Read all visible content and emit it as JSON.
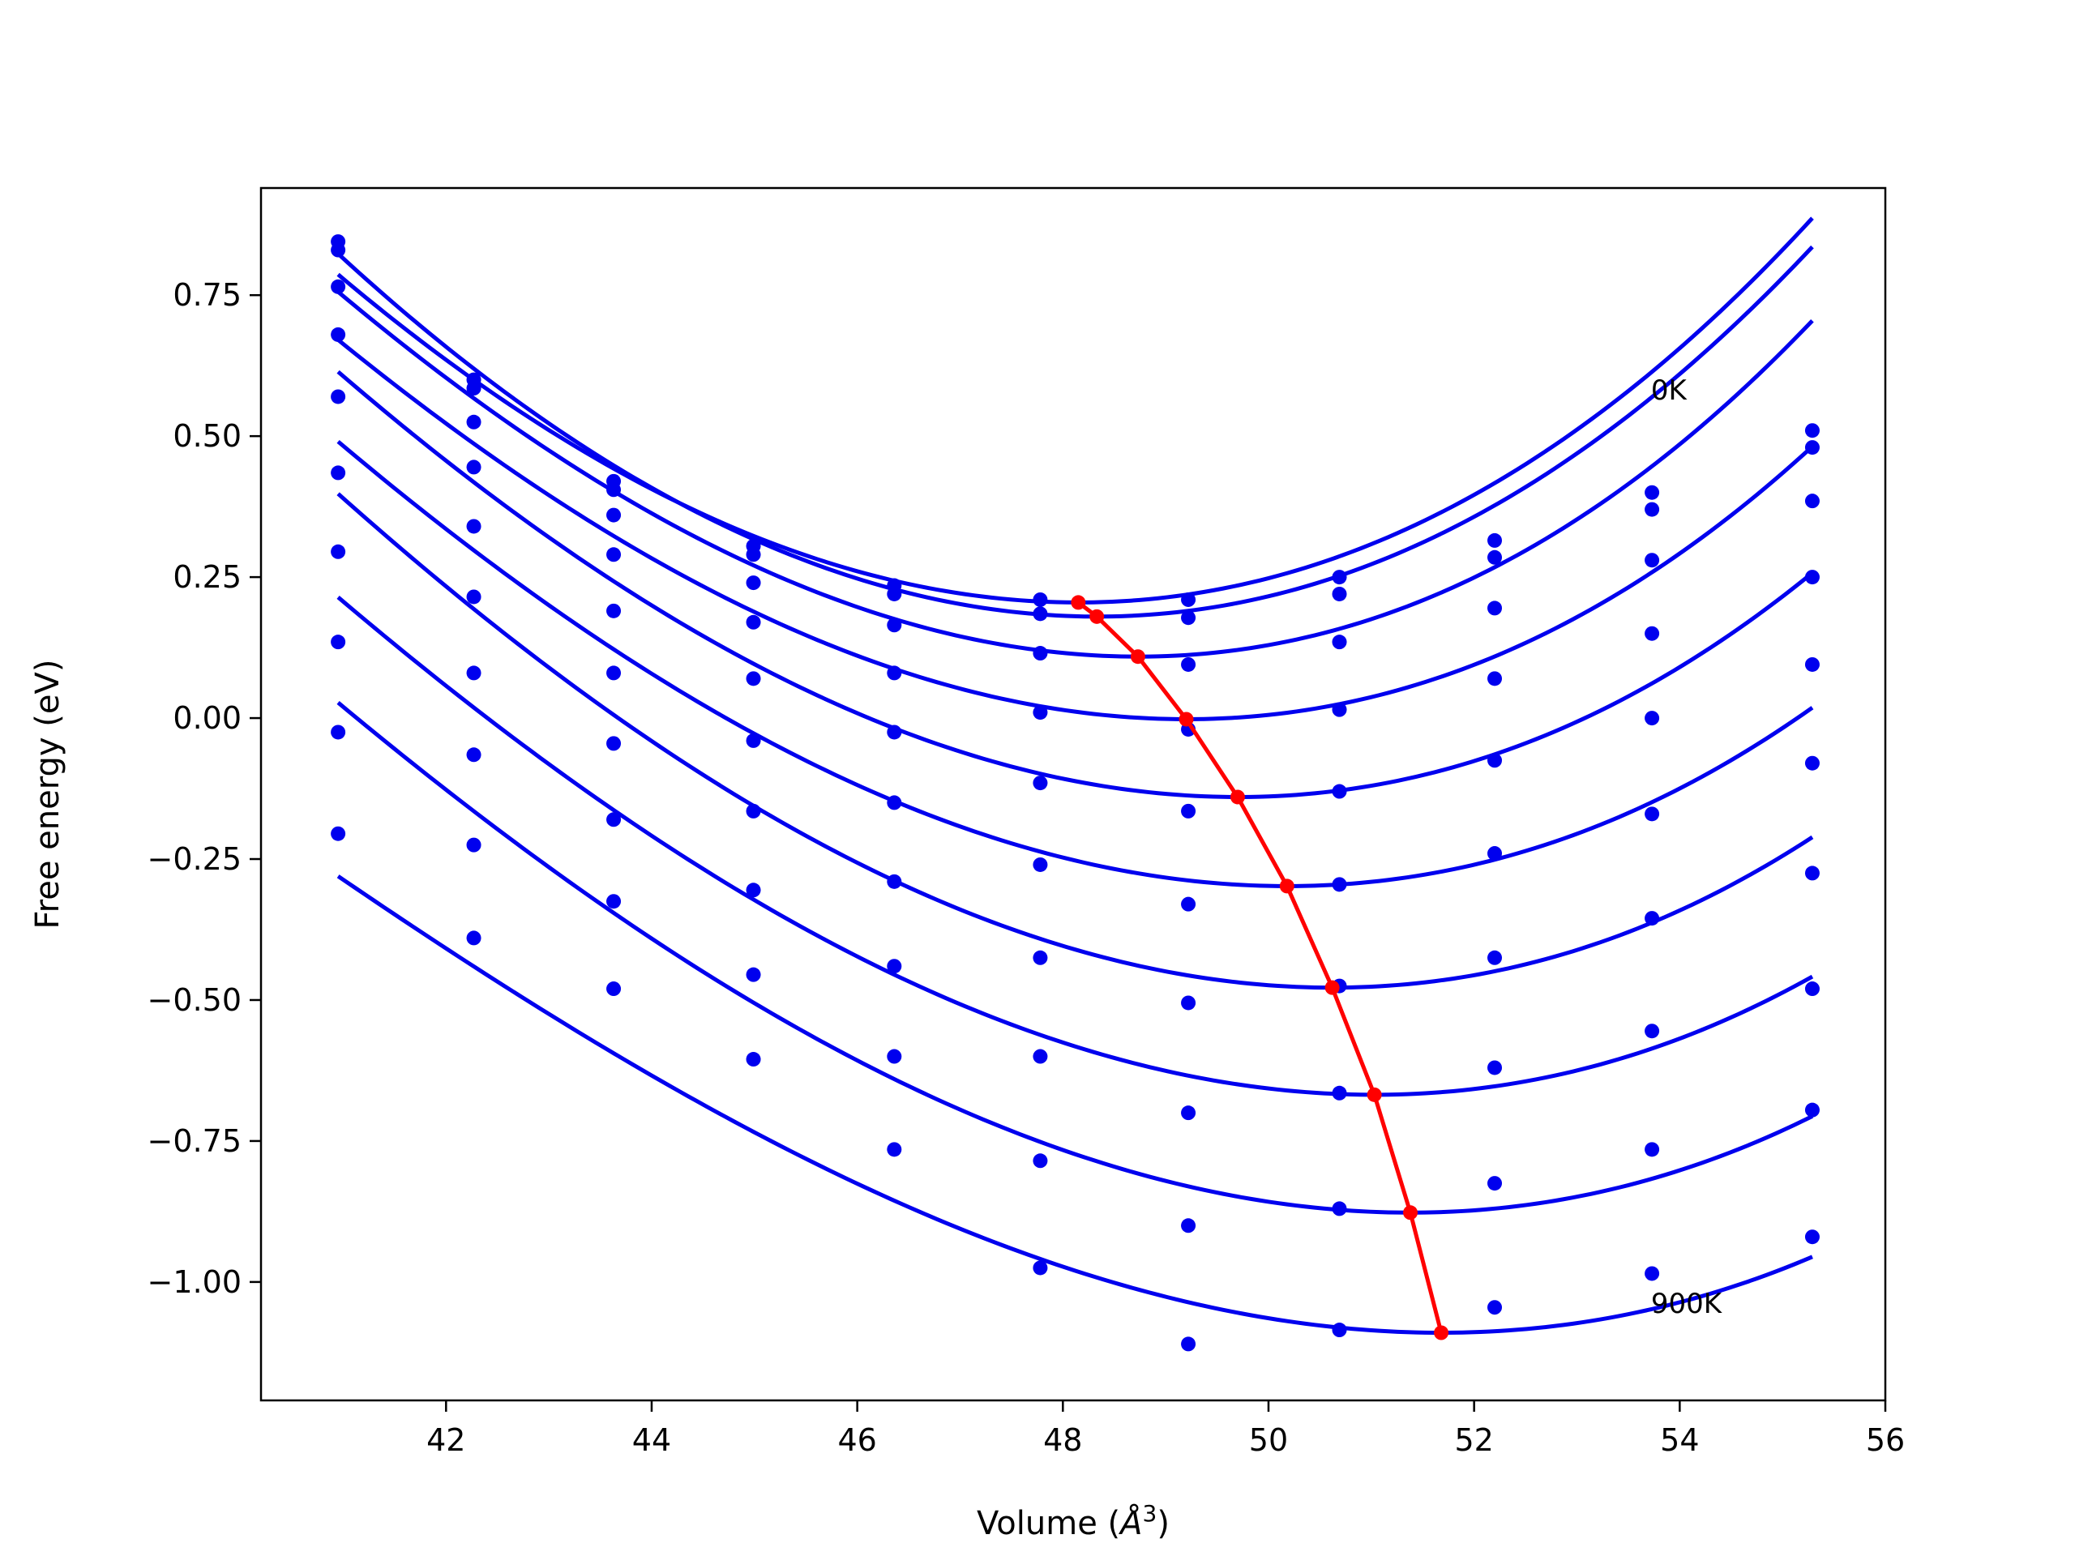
{
  "chart_data": {
    "type": "scatter",
    "title": "",
    "xlabel": "Volume ($\\AA^3$)",
    "xlabel_parts": {
      "prefix": "Volume (",
      "symbol": "Å",
      "exp": "3",
      "suffix": ")"
    },
    "ylabel": "Free energy (eV)",
    "xlim": [
      40.2,
      56.0
    ],
    "ylim": [
      -1.21,
      0.94
    ],
    "xticks": [
      42,
      44,
      46,
      48,
      50,
      52,
      54,
      56
    ],
    "xtick_labels": [
      "42",
      "44",
      "46",
      "48",
      "50",
      "52",
      "54",
      "56"
    ],
    "yticks": [
      -1.0,
      -0.75,
      -0.5,
      -0.25,
      0.0,
      0.25,
      0.5,
      0.75
    ],
    "ytick_labels": [
      "−1.00",
      "−0.75",
      "−0.50",
      "−0.25",
      "0.00",
      "0.25",
      "0.50",
      "0.75"
    ],
    "grid": false,
    "colors": {
      "series": "#0000ee",
      "minima": "#ff0000"
    },
    "annotations": [
      {
        "text": "0K",
        "x": 53.72,
        "y": 0.565
      },
      {
        "text": "900K",
        "x": 53.72,
        "y": -1.055
      }
    ],
    "volumes": [
      40.95,
      42.27,
      43.63,
      44.99,
      46.36,
      47.78,
      49.22,
      50.69,
      52.2,
      53.73,
      55.29
    ],
    "series": [
      {
        "values": [
          0.845,
          0.6,
          0.42,
          0.305,
          0.235,
          0.21,
          0.21,
          0.25,
          0.315,
          0.4,
          0.51
        ],
        "fit": {
          "x0": 48.15,
          "ymin": 0.205,
          "a": 0.0123,
          "b": 0.00015
        }
      },
      {
        "values": [
          0.83,
          0.585,
          0.405,
          0.29,
          0.22,
          0.185,
          0.178,
          0.22,
          0.285,
          0.37,
          0.48
        ],
        "fit": {
          "x0": 48.33,
          "ymin": 0.18,
          "a": 0.0127,
          "b": 0.00012
        }
      },
      {
        "values": [
          0.765,
          0.525,
          0.36,
          0.24,
          0.165,
          0.115,
          0.095,
          0.135,
          0.195,
          0.28,
          0.385
        ],
        "fit": {
          "x0": 48.73,
          "ymin": 0.109,
          "a": 0.0124,
          "b": 0.00022
        }
      },
      {
        "values": [
          0.68,
          0.445,
          0.29,
          0.17,
          0.08,
          0.01,
          -0.02,
          0.015,
          0.07,
          0.15,
          0.25
        ],
        "fit": {
          "x0": 49.2,
          "ymin": -0.002,
          "a": 0.0117,
          "b": 0.00022
        }
      },
      {
        "values": [
          0.57,
          0.34,
          0.19,
          0.07,
          -0.025,
          -0.115,
          -0.165,
          -0.13,
          -0.075,
          0.0,
          0.095
        ],
        "fit": {
          "x0": 49.7,
          "ymin": -0.14,
          "a": 0.0116,
          "b": 0.0002
        }
      },
      {
        "values": [
          0.435,
          0.215,
          0.08,
          -0.04,
          -0.15,
          -0.26,
          -0.33,
          -0.295,
          -0.24,
          -0.17,
          -0.08
        ],
        "fit": {
          "x0": 50.18,
          "ymin": -0.298,
          "a": 0.0111,
          "b": 0.0002
        }
      },
      {
        "values": [
          0.295,
          0.08,
          -0.045,
          -0.165,
          -0.29,
          -0.425,
          -0.505,
          -0.475,
          -0.425,
          -0.355,
          -0.275
        ],
        "fit": {
          "x0": 50.62,
          "ymin": -0.478,
          "a": 0.0113,
          "b": 0.0002
        }
      },
      {
        "values": [
          0.135,
          -0.065,
          -0.18,
          -0.305,
          -0.44,
          -0.6,
          -0.7,
          -0.665,
          -0.62,
          -0.555,
          -0.48
        ],
        "fit": {
          "x0": 51.03,
          "ymin": -0.668,
          "a": 0.0107,
          "b": 0.0002
        }
      },
      {
        "values": [
          -0.025,
          -0.225,
          -0.325,
          -0.455,
          -0.6,
          -0.785,
          -0.9,
          -0.87,
          -0.825,
          -0.765,
          -0.695
        ],
        "fit": {
          "x0": 51.38,
          "ymin": -0.877,
          "a": 0.0104,
          "b": 0.0002
        }
      },
      {
        "values": [
          -0.205,
          -0.39,
          -0.48,
          -0.605,
          -0.765,
          -0.975,
          -1.11,
          -1.085,
          -1.045,
          -0.985,
          -0.92
        ],
        "fit": {
          "x0": 51.68,
          "ymin": -1.09,
          "a": 0.0095,
          "b": 0.00023
        }
      }
    ],
    "minima_curve": {
      "x": [
        48.15,
        48.33,
        48.73,
        49.2,
        49.7,
        50.18,
        50.62,
        51.03,
        51.38,
        51.68
      ],
      "y": [
        0.205,
        0.18,
        0.109,
        -0.002,
        -0.14,
        -0.298,
        -0.478,
        -0.668,
        -0.877,
        -1.09
      ]
    }
  }
}
